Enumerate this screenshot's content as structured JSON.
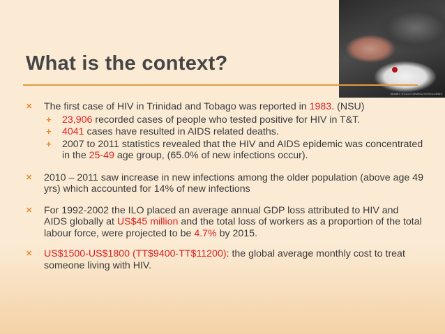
{
  "slide": {
    "title": "What is the context?",
    "photo": {
      "caption": "SIDNEY STOCKTON/REUTERS/CORBIS"
    },
    "bullets": [
      {
        "parts": [
          "The first case of HIV in Trinidad and Tobago was reported in ",
          "1983",
          ". (NSU)"
        ],
        "sub": [
          {
            "parts": [
              "23,906",
              " recorded cases of people who tested positive for HIV in T&T."
            ]
          },
          {
            "parts": [
              "4041",
              " cases have resulted in AIDS related deaths."
            ]
          },
          {
            "parts": [
              "2007 to 2011 statistics revealed that the HIV and AIDS epidemic was concentrated in the ",
              "25-49",
              " age group, (65.0% of new infections occur)."
            ]
          }
        ]
      },
      {
        "text": "2010 – 2011 saw increase in new infections among the older population (above age 49  yrs)  which accounted for 14% of new infections"
      },
      {
        "parts": [
          "For 1992-2002 the ILO placed an average annual GDP loss attributed to HIV and AIDS globally at ",
          "US$45 million",
          " and the total loss of workers as a proportion of the total labour force, were projected to be ",
          "4.7%",
          " by 2015."
        ]
      },
      {
        "parts": [
          "US$1500-US$1800 (TT$9400-TT$11200)",
          ": the global average monthly cost to treat someone living with HIV."
        ]
      }
    ]
  },
  "colors": {
    "background": "#fbebd5",
    "accent": "#e39a3b",
    "bullet": "#e38b2c",
    "highlight": "#e01f1f",
    "text": "#3a3a3a"
  },
  "icons": {
    "bullet": "x-bullet-icon",
    "sub_bullet": "plus-bullet-icon"
  }
}
